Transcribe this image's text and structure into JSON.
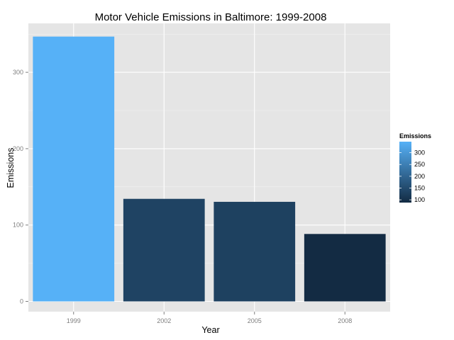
{
  "chart_data": {
    "type": "bar",
    "title": "Motor Vehicle Emissions in Baltimore: 1999-2008",
    "xlabel": "Year",
    "ylabel": "Emissions",
    "categories": [
      "1999",
      "2002",
      "2005",
      "2008"
    ],
    "values": [
      346.8,
      134.3,
      130.4,
      88.3
    ],
    "ylim": [
      0,
      362
    ],
    "yticks": [
      0,
      100,
      200,
      300
    ],
    "grid": true,
    "legend": {
      "title": "Emissions",
      "position": "right",
      "ticks": [
        300,
        250,
        200,
        150,
        100
      ],
      "color_low": "#132B43",
      "color_high": "#56B1F7"
    },
    "panel_background": "#E5E5E5",
    "grid_color": "#FFFFFF"
  }
}
